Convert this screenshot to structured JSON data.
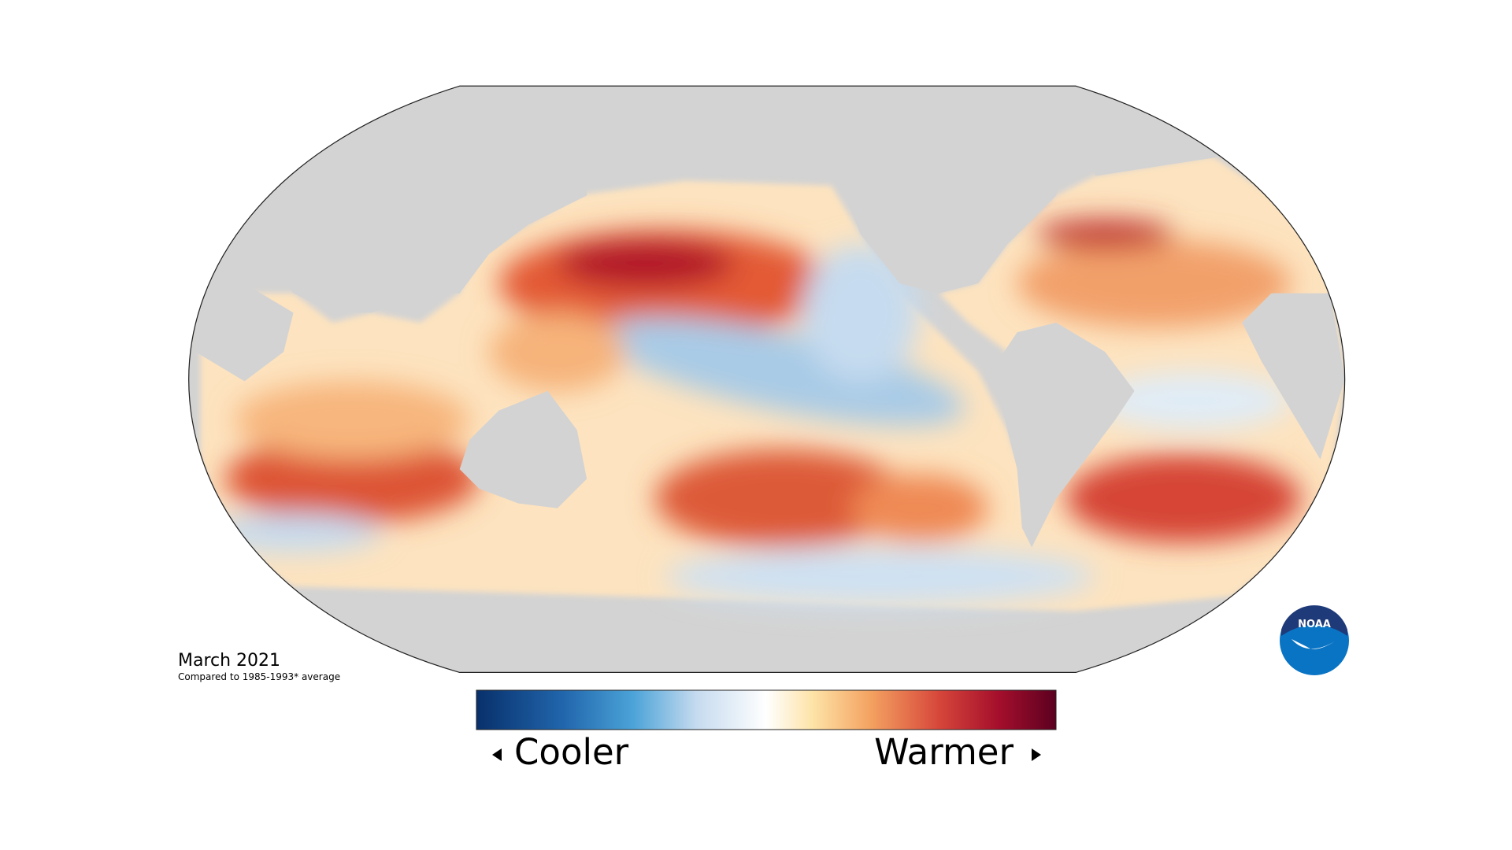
{
  "title": "March 2021",
  "subtitle": "Compared to 1985-1993* average",
  "legend": {
    "low_label": "Cooler",
    "high_label": "Warmer"
  },
  "logo": "NOAA"
}
